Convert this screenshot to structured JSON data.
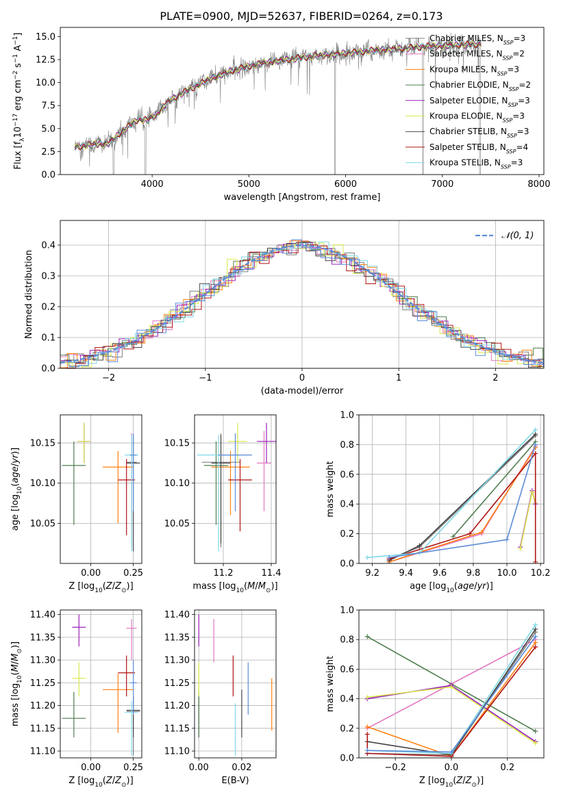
{
  "title": "PLATE=0900, MJD=52637, FIBERID=0264, z=0.173",
  "colors": {
    "Chabrier MILES": "#7f7f7f",
    "Salpeter MILES": "#e377c2",
    "Kroupa MILES": "#ff7f0e",
    "Chabrier ELODIE": "#4e7d4e",
    "Salpeter ELODIE": "#9a1fb8",
    "Kroupa ELODIE": "#d9e84a",
    "Chabrier STELIB": "#444444",
    "Salpeter STELIB": "#b01212",
    "Kroupa STELIB": "#7fd8e8",
    "normal": "#5b8bd8"
  },
  "chart_data": [
    {
      "type": "line",
      "panel": "spectrum",
      "xlabel": "wavelength [Angstrom, rest frame]",
      "ylabel": "Flux [f_λ 10^-17 erg cm^-2 s^-1 A^-1]",
      "xlim": [
        3050,
        8050
      ],
      "ylim": [
        0,
        16
      ],
      "xticks": [
        "4000",
        "5000",
        "6000",
        "7000",
        "8000"
      ],
      "yticks": [
        "0.0",
        "2.5",
        "5.0",
        "7.5",
        "10.0",
        "12.5",
        "15.0"
      ],
      "grid": false,
      "legend_position": "top-right",
      "legend": [
        {
          "name": "Chabrier MILES",
          "nssp": "3"
        },
        {
          "name": "Salpeter MILES",
          "nssp": "2"
        },
        {
          "name": "Kroupa MILES",
          "nssp": "3"
        },
        {
          "name": "Chabrier ELODIE",
          "nssp": "2"
        },
        {
          "name": "Salpeter ELODIE",
          "nssp": "3"
        },
        {
          "name": "Kroupa ELODIE",
          "nssp": "3"
        },
        {
          "name": "Chabrier STELIB",
          "nssp": "3"
        },
        {
          "name": "Salpeter STELIB",
          "nssp": "4"
        },
        {
          "name": "Kroupa STELIB",
          "nssp": "3"
        }
      ],
      "model_continuum": {
        "x": [
          3200,
          3400,
          3550,
          3700,
          3850,
          3950,
          4050,
          4150,
          4300,
          4450,
          4600,
          4800,
          5000,
          5200,
          5400,
          5600,
          5800,
          6000,
          6200,
          6400,
          6600,
          6800,
          7000,
          7200,
          7400
        ],
        "y": [
          3.0,
          3.3,
          3.4,
          4.8,
          6.0,
          5.9,
          6.6,
          7.8,
          8.8,
          9.6,
          10.4,
          11.2,
          11.8,
          12.2,
          12.5,
          12.8,
          13.0,
          13.2,
          13.4,
          13.6,
          13.7,
          13.9,
          14.0,
          14.1,
          14.2
        ]
      },
      "data_x_range": [
        3200,
        7400
      ]
    },
    {
      "type": "line",
      "panel": "residual_distribution",
      "xlabel": "(data-model)/error",
      "ylabel": "Normed distribution",
      "xlim": [
        -2.5,
        2.5
      ],
      "ylim": [
        0,
        0.48
      ],
      "xticks": [
        "−2",
        "−1",
        "0",
        "1",
        "2"
      ],
      "yticks": [
        "0.0",
        "0.1",
        "0.2",
        "0.3",
        "0.4"
      ],
      "grid": true,
      "legend_label": "𝒩(0, 1)",
      "legend_position": "top-right",
      "reference_curve": "standard normal density, dashed"
    },
    {
      "type": "scatter",
      "panel": "age_vs_Z",
      "xlabel": "Z [log10(Z/Z⊙)]",
      "ylabel": "age [log10(age/yr)]",
      "xlim": [
        -0.18,
        0.3
      ],
      "ylim": [
        10.0,
        10.185
      ],
      "xticks": [
        "0.00",
        "0.25"
      ],
      "yticks": [
        "10.05",
        "10.10",
        "10.15"
      ],
      "series": [
        {
          "ref": "Chabrier MILES",
          "x": 0.24,
          "y": 10.126,
          "xerr": 0.03,
          "yerr": [
            10.02,
            10.162
          ]
        },
        {
          "ref": "Salpeter MILES",
          "x": 0.24,
          "y": 10.125,
          "xerr": 0.03,
          "yerr": [
            10.04,
            10.162
          ]
        },
        {
          "ref": "Kroupa MILES",
          "x": 0.16,
          "y": 10.12,
          "xerr": 0.09,
          "yerr": [
            10.05,
            10.14
          ]
        },
        {
          "ref": "Chabrier ELODIE",
          "x": -0.1,
          "y": 10.122,
          "xerr": 0.07,
          "yerr": [
            10.048,
            10.152
          ]
        },
        {
          "ref": "Salpeter ELODIE",
          "x": -0.04,
          "y": 10.152,
          "xerr": 0.04,
          "yerr": [
            10.125,
            10.175
          ]
        },
        {
          "ref": "Kroupa ELODIE",
          "x": -0.04,
          "y": 10.152,
          "xerr": 0.04,
          "yerr": [
            10.125,
            10.175
          ]
        },
        {
          "ref": "Chabrier STELIB",
          "x": 0.25,
          "y": 10.125,
          "xerr": 0.04,
          "yerr": [
            10.015,
            10.16
          ]
        },
        {
          "ref": "Salpeter STELIB",
          "x": 0.21,
          "y": 10.104,
          "xerr": 0.05,
          "yerr": [
            10.035,
            10.13
          ]
        },
        {
          "ref": "Kroupa STELIB",
          "x": 0.24,
          "y": 10.135,
          "xerr": 0.04,
          "yerr": [
            10.015,
            10.16
          ]
        },
        {
          "ref": "normal",
          "x": 0.25,
          "y": 10.135,
          "xerr": 0.02,
          "yerr": [
            10.065,
            10.162
          ]
        }
      ]
    },
    {
      "type": "scatter",
      "panel": "age_vs_mass",
      "xlabel": "mass [log10(M/M⊙)]",
      "xlim": [
        11.08,
        11.42
      ],
      "ylim": [
        10.0,
        10.185
      ],
      "xticks": [
        "11.2",
        "11.4"
      ],
      "yticks": [
        "10.05",
        "10.10",
        "10.15"
      ],
      "series": [
        {
          "ref": "Chabrier MILES",
          "x": 11.19,
          "y": 10.126,
          "xerr": 0.08,
          "yerr": [
            10.02,
            10.162
          ]
        },
        {
          "ref": "Salpeter MILES",
          "x": 11.37,
          "y": 10.125,
          "xerr": 0.03,
          "yerr": [
            10.065,
            10.165
          ]
        },
        {
          "ref": "Kroupa MILES",
          "x": 11.23,
          "y": 10.12,
          "xerr": 0.08,
          "yerr": [
            10.06,
            10.14
          ]
        },
        {
          "ref": "Chabrier ELODIE",
          "x": 11.17,
          "y": 10.122,
          "xerr": 0.05,
          "yerr": [
            10.048,
            10.152
          ]
        },
        {
          "ref": "Salpeter ELODIE",
          "x": 11.38,
          "y": 10.152,
          "xerr": 0.04,
          "yerr": [
            10.125,
            10.175
          ]
        },
        {
          "ref": "Kroupa ELODIE",
          "x": 11.26,
          "y": 10.152,
          "xerr": 0.04,
          "yerr": [
            10.125,
            10.175
          ]
        },
        {
          "ref": "Chabrier STELIB",
          "x": 11.19,
          "y": 10.125,
          "xerr": 0.04,
          "yerr": [
            10.025,
            10.16
          ]
        },
        {
          "ref": "Salpeter STELIB",
          "x": 11.27,
          "y": 10.104,
          "xerr": 0.05,
          "yerr": [
            10.04,
            10.13
          ]
        },
        {
          "ref": "Kroupa STELIB",
          "x": 11.18,
          "y": 10.135,
          "xerr": 0.09,
          "yerr": [
            10.015,
            10.16
          ]
        },
        {
          "ref": "normal",
          "x": 11.25,
          "y": 10.135,
          "xerr": 0.07,
          "yerr": [
            10.065,
            10.162
          ]
        }
      ]
    },
    {
      "type": "line",
      "panel": "mass_weight_vs_age",
      "xlabel": "age [log10(age/yr)]",
      "ylabel": "mass weight",
      "xlim": [
        9.12,
        10.22
      ],
      "ylim": [
        0,
        1.0
      ],
      "xticks": [
        "9.2",
        "9.4",
        "9.6",
        "9.8",
        "10.0",
        "10.2"
      ],
      "yticks": [
        "0.0",
        "0.2",
        "0.4",
        "0.6",
        "0.8",
        "1.0"
      ],
      "grid": true,
      "series": [
        {
          "ref": "Chabrier MILES",
          "x": [
            9.3,
            9.48,
            10.17
          ],
          "y": [
            0.03,
            0.11,
            0.86
          ]
        },
        {
          "ref": "Salpeter MILES",
          "x": [
            9.3,
            9.85,
            10.17
          ],
          "y": [
            0.01,
            0.2,
            0.79
          ]
        },
        {
          "ref": "Kroupa MILES",
          "x": [
            9.3,
            9.85,
            10.17
          ],
          "y": [
            0.01,
            0.21,
            0.78
          ]
        },
        {
          "ref": "Chabrier ELODIE",
          "x": [
            9.68,
            10.17
          ],
          "y": [
            0.18,
            0.82
          ]
        },
        {
          "ref": "Salpeter ELODIE",
          "x": [
            10.08,
            10.15,
            10.17
          ],
          "y": [
            0.11,
            0.49,
            0.4
          ]
        },
        {
          "ref": "Kroupa ELODIE",
          "x": [
            10.08,
            10.15,
            10.17
          ],
          "y": [
            0.1,
            0.48,
            0.41
          ]
        },
        {
          "ref": "Chabrier STELIB",
          "x": [
            9.3,
            9.48,
            10.17
          ],
          "y": [
            0.02,
            0.12,
            0.87
          ]
        },
        {
          "ref": "Salpeter STELIB",
          "x": [
            9.3,
            9.78,
            10.17,
            10.17
          ],
          "y": [
            0.03,
            0.2,
            0.74,
            0.01
          ]
        },
        {
          "ref": "Kroupa STELIB",
          "x": [
            9.17,
            9.48,
            10.17
          ],
          "y": [
            0.04,
            0.07,
            0.9
          ]
        },
        {
          "ref": "normal",
          "x": [
            9.3,
            10.0,
            10.17
          ],
          "y": [
            0.04,
            0.16,
            0.8
          ]
        }
      ]
    },
    {
      "type": "scatter",
      "panel": "mass_vs_Z",
      "xlabel": "Z [log10(Z/Z⊙)]",
      "ylabel": "mass [log10(M/M⊙)]",
      "xlim": [
        -0.18,
        0.3
      ],
      "ylim": [
        11.085,
        11.41
      ],
      "xticks": [
        "0.00",
        "0.25"
      ],
      "yticks": [
        "11.10",
        "11.15",
        "11.20",
        "11.25",
        "11.30",
        "11.35",
        "11.40"
      ],
      "series": [
        {
          "ref": "Chabrier MILES",
          "x": 0.25,
          "y": 11.19,
          "xerr": 0.04,
          "yerr": [
            11.09,
            11.22
          ]
        },
        {
          "ref": "Salpeter MILES",
          "x": 0.24,
          "y": 11.37,
          "xerr": 0.03,
          "yerr": [
            11.3,
            11.39
          ]
        },
        {
          "ref": "Kroupa MILES",
          "x": 0.16,
          "y": 11.235,
          "xerr": 0.09,
          "yerr": [
            11.14,
            11.27
          ]
        },
        {
          "ref": "Chabrier ELODIE",
          "x": -0.1,
          "y": 11.172,
          "xerr": 0.07,
          "yerr": [
            11.13,
            11.23
          ]
        },
        {
          "ref": "Salpeter ELODIE",
          "x": -0.07,
          "y": 11.372,
          "xerr": 0.04,
          "yerr": [
            11.33,
            11.4
          ]
        },
        {
          "ref": "Kroupa ELODIE",
          "x": -0.07,
          "y": 11.26,
          "xerr": 0.04,
          "yerr": [
            11.22,
            11.295
          ]
        },
        {
          "ref": "Chabrier STELIB",
          "x": 0.25,
          "y": 11.188,
          "xerr": 0.04,
          "yerr": [
            11.13,
            11.22
          ]
        },
        {
          "ref": "Salpeter STELIB",
          "x": 0.21,
          "y": 11.272,
          "xerr": 0.05,
          "yerr": [
            11.22,
            11.31
          ]
        },
        {
          "ref": "Kroupa STELIB",
          "x": 0.24,
          "y": 11.185,
          "xerr": 0.04,
          "yerr": [
            11.09,
            11.21
          ]
        },
        {
          "ref": "normal",
          "x": 0.25,
          "y": 11.25,
          "xerr": 0.02,
          "yerr": [
            11.18,
            11.3
          ]
        }
      ]
    },
    {
      "type": "scatter",
      "panel": "mass_vs_ebv",
      "xlabel": "E(B-V)",
      "xlim": [
        -0.002,
        0.036
      ],
      "ylim": [
        11.085,
        11.41
      ],
      "xticks": [
        "0.00",
        "0.02"
      ],
      "yticks": [
        "11.10",
        "11.15",
        "11.20",
        "11.25",
        "11.30",
        "11.35",
        "11.40"
      ],
      "series": [
        {
          "ref": "Chabrier MILES",
          "x": 0.0,
          "y": 11.19,
          "yerr": [
            11.13,
            11.22
          ]
        },
        {
          "ref": "Salpeter MILES",
          "x": 0.007,
          "y": 11.34,
          "yerr": [
            11.295,
            11.39
          ]
        },
        {
          "ref": "Kroupa MILES",
          "x": 0.034,
          "y": 11.2,
          "yerr": [
            11.145,
            11.26
          ]
        },
        {
          "ref": "Chabrier ELODIE",
          "x": 0.0,
          "y": 11.17,
          "yerr": [
            11.13,
            11.23
          ]
        },
        {
          "ref": "Salpeter ELODIE",
          "x": 0.0,
          "y": 11.37,
          "yerr": [
            11.33,
            11.4
          ]
        },
        {
          "ref": "Kroupa ELODIE",
          "x": 0.0,
          "y": 11.26,
          "yerr": [
            11.22,
            11.295
          ]
        },
        {
          "ref": "Chabrier STELIB",
          "x": 0.02,
          "y": 11.18,
          "yerr": [
            11.13,
            11.235
          ]
        },
        {
          "ref": "Salpeter STELIB",
          "x": 0.016,
          "y": 11.27,
          "yerr": [
            11.22,
            11.31
          ]
        },
        {
          "ref": "Kroupa STELIB",
          "x": 0.017,
          "y": 11.15,
          "yerr": [
            11.09,
            11.205
          ]
        },
        {
          "ref": "normal",
          "x": 0.023,
          "y": 11.24,
          "yerr": [
            11.18,
            11.295
          ]
        }
      ]
    },
    {
      "type": "line",
      "panel": "mass_weight_vs_Z",
      "xlabel": "Z [log10(Z/Z⊙)]",
      "ylabel": "mass weight",
      "xlim": [
        -0.33,
        0.33
      ],
      "ylim": [
        0,
        1.0
      ],
      "xticks": [
        "−0.2",
        "0.0",
        "0.2"
      ],
      "yticks": [
        "0.0",
        "0.2",
        "0.4",
        "0.6",
        "0.8",
        "1.0"
      ],
      "grid": true,
      "series": [
        {
          "ref": "Chabrier MILES",
          "x": [
            -0.3,
            0.0,
            0.3
          ],
          "y": [
            0.03,
            0.02,
            0.85
          ]
        },
        {
          "ref": "Salpeter MILES",
          "x": [
            -0.3,
            0.0,
            0.3
          ],
          "y": [
            0.2,
            0.5,
            0.8
          ]
        },
        {
          "ref": "Kroupa MILES",
          "x": [
            -0.3,
            0.0,
            0.3
          ],
          "y": [
            0.21,
            0.01,
            0.78
          ]
        },
        {
          "ref": "Chabrier ELODIE",
          "x": [
            -0.3,
            0.3
          ],
          "y": [
            0.82,
            0.18
          ]
        },
        {
          "ref": "Salpeter ELODIE",
          "x": [
            -0.3,
            0.0,
            0.3
          ],
          "y": [
            0.4,
            0.49,
            0.11
          ]
        },
        {
          "ref": "Kroupa ELODIE",
          "x": [
            -0.3,
            0.0,
            0.3
          ],
          "y": [
            0.41,
            0.48,
            0.1
          ]
        },
        {
          "ref": "Chabrier STELIB",
          "x": [
            -0.3,
            0.0,
            0.3
          ],
          "y": [
            0.11,
            0.02,
            0.87
          ]
        },
        {
          "ref": "Salpeter STELIB",
          "x": [
            -0.3,
            -0.3,
            0.0,
            0.3
          ],
          "y": [
            0.16,
            0.03,
            0.01,
            0.75
          ]
        },
        {
          "ref": "Kroupa STELIB",
          "x": [
            -0.3,
            0.0,
            0.3
          ],
          "y": [
            0.05,
            0.03,
            0.9
          ]
        },
        {
          "ref": "normal",
          "x": [
            -0.3,
            0.0,
            0.3
          ],
          "y": [
            0.05,
            0.04,
            0.82
          ]
        }
      ]
    }
  ]
}
